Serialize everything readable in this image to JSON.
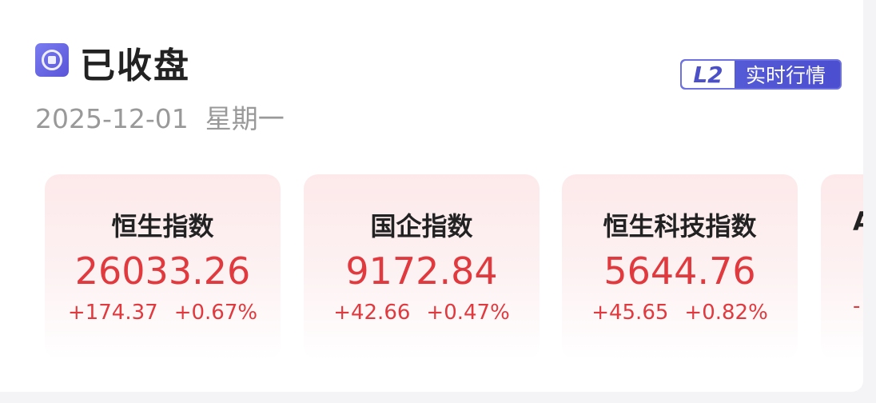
{
  "header": {
    "status_icon": "market-closed-icon",
    "title": "已收盘",
    "date": "2025-12-01",
    "weekday": "星期一"
  },
  "badge": {
    "logo": "L2",
    "label": "实时行情",
    "color": "#4b4fd0"
  },
  "indices": [
    {
      "name": "恒生指数",
      "value": "26033.26",
      "change": "+174.37",
      "percent": "+0.67%"
    },
    {
      "name": "国企指数",
      "value": "9172.84",
      "change": "+42.66",
      "percent": "+0.47%"
    },
    {
      "name": "恒生科技指数",
      "value": "5644.76",
      "change": "+45.65",
      "percent": "+0.82%"
    },
    {
      "name": "A",
      "value": "",
      "change": "-",
      "percent": ""
    }
  ],
  "colors": {
    "up": "#e0393e",
    "accent": "#5a5fd8"
  }
}
